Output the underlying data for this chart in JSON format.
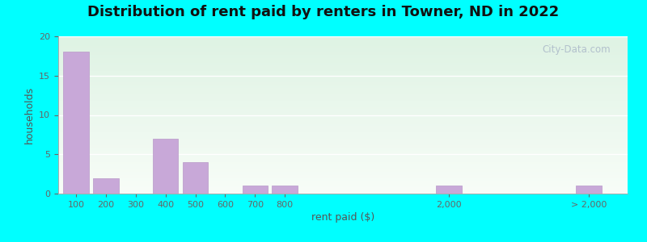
{
  "title": "Distribution of rent paid by renters in Towner, ND in 2022",
  "xlabel": "rent paid ($)",
  "ylabel": "households",
  "background_color": "#00FFFF",
  "bar_color": "#c8a8d8",
  "bar_edgecolor": "#b898c8",
  "ylim": [
    0,
    20
  ],
  "yticks": [
    0,
    5,
    10,
    15,
    20
  ],
  "categories": [
    "100",
    "200",
    "300",
    "400",
    "500",
    "600",
    "700",
    "800",
    "2,000",
    "> 2,000"
  ],
  "values": [
    18,
    2,
    0,
    7,
    4,
    0,
    1,
    1,
    1,
    1
  ],
  "title_fontsize": 13,
  "axis_label_fontsize": 9,
  "tick_fontsize": 8,
  "watermark_text": "City-Data.com"
}
